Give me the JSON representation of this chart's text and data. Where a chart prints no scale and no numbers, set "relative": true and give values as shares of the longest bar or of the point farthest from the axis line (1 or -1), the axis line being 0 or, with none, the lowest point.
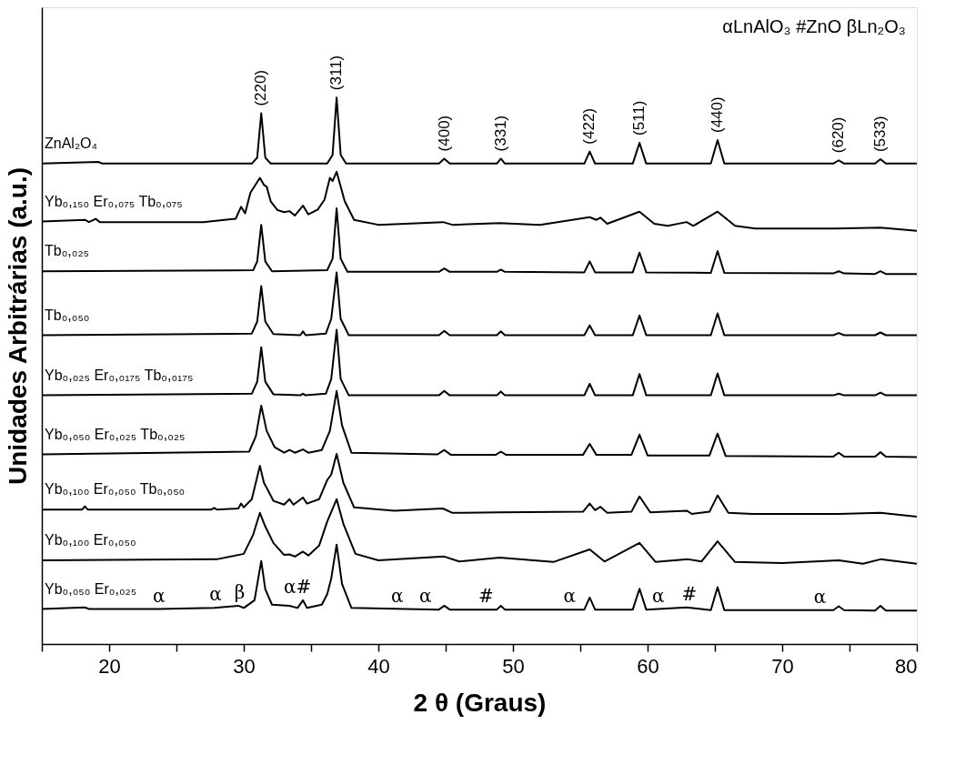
{
  "chart_data": {
    "type": "line",
    "relative": true,
    "xlabel": "2 θ (Graus)",
    "ylabel": "Unidades Arbitrárias (a.u.)",
    "xlim": [
      15,
      80
    ],
    "xticks": [
      {
        "value": 15,
        "label": null
      },
      20,
      {
        "value": 25,
        "label": null
      },
      30,
      {
        "value": 35,
        "label": null
      },
      40,
      {
        "value": 45,
        "label": null
      },
      50,
      {
        "value": 55,
        "label": null
      },
      60,
      {
        "value": 65,
        "label": null
      },
      70,
      {
        "value": 75,
        "label": null
      },
      80
    ],
    "tick_labels": "x",
    "grid": false,
    "line_style": "solid",
    "series": [
      {
        "name": "ZnAl₂O₄",
        "color": "#000000",
        "x": [
          15,
          19.2,
          19.5,
          30.6,
          31.0,
          31.3,
          31.6,
          32.0,
          36.2,
          36.6,
          36.9,
          37.2,
          37.6,
          44.5,
          44.9,
          45.3,
          48.8,
          49.1,
          49.4,
          55.3,
          55.7,
          56.1,
          58.9,
          59.4,
          59.9,
          64.7,
          65.2,
          65.7,
          73.8,
          74.2,
          74.6,
          76.9,
          77.3,
          77.7,
          80
        ],
        "values": [
          0.879,
          0.882,
          0.879,
          0.879,
          0.89,
          0.971,
          0.89,
          0.879,
          0.879,
          0.895,
          1.0,
          0.895,
          0.879,
          0.879,
          0.888,
          0.879,
          0.879,
          0.888,
          0.879,
          0.879,
          0.901,
          0.879,
          0.879,
          0.917,
          0.879,
          0.879,
          0.922,
          0.879,
          0.879,
          0.885,
          0.879,
          0.879,
          0.887,
          0.879,
          0.879
        ]
      },
      {
        "name": "Yb₀,₁₅₀ Er₀,₀₇₅ Tb₀,₀₇₅",
        "color": "#000000",
        "x": [
          15,
          18.2,
          18.5,
          19.0,
          19.3,
          27,
          29.4,
          29.8,
          30.1,
          30.5,
          31.2,
          31.5,
          31.7,
          32.0,
          32.5,
          33.0,
          33.4,
          33.8,
          34.4,
          34.8,
          35.5,
          36.0,
          36.4,
          36.6,
          36.9,
          37.5,
          38.2,
          40,
          44.8,
          45.5,
          49,
          52,
          55.7,
          56.2,
          56.5,
          57,
          59.4,
          60.5,
          61.5,
          62.9,
          63.4,
          65.2,
          66.5,
          68,
          74,
          77.3,
          80
        ],
        "values": [
          0.773,
          0.776,
          0.772,
          0.778,
          0.772,
          0.772,
          0.778,
          0.8,
          0.788,
          0.826,
          0.853,
          0.84,
          0.837,
          0.81,
          0.794,
          0.79,
          0.792,
          0.784,
          0.802,
          0.786,
          0.795,
          0.813,
          0.853,
          0.847,
          0.864,
          0.81,
          0.776,
          0.767,
          0.772,
          0.767,
          0.77,
          0.767,
          0.781,
          0.776,
          0.78,
          0.769,
          0.791,
          0.769,
          0.765,
          0.772,
          0.765,
          0.791,
          0.765,
          0.76,
          0.76,
          0.762,
          0.756
        ]
      },
      {
        "name": "Tb₀,₀₂₅",
        "color": "#000000",
        "x": [
          15,
          30.7,
          31.0,
          31.3,
          31.6,
          32.1,
          36.2,
          36.6,
          36.9,
          37.2,
          37.7,
          44.5,
          44.9,
          45.3,
          48.8,
          49.1,
          49.4,
          55.3,
          55.7,
          56.1,
          58.9,
          59.4,
          59.9,
          64.7,
          65.2,
          65.7,
          73.8,
          74.2,
          74.6,
          76.9,
          77.3,
          77.7,
          80
        ],
        "values": [
          0.682,
          0.684,
          0.7,
          0.767,
          0.7,
          0.682,
          0.684,
          0.705,
          0.797,
          0.705,
          0.681,
          0.681,
          0.687,
          0.681,
          0.681,
          0.685,
          0.681,
          0.68,
          0.7,
          0.68,
          0.68,
          0.716,
          0.68,
          0.679,
          0.719,
          0.679,
          0.678,
          0.682,
          0.678,
          0.677,
          0.682,
          0.677,
          0.677
        ]
      },
      {
        "name": "Tb₀,₀₅₀",
        "color": "#000000",
        "x": [
          15,
          30.6,
          31.0,
          31.3,
          31.6,
          32.2,
          34.2,
          34.4,
          34.6,
          36.1,
          36.5,
          36.9,
          37.2,
          37.8,
          44.5,
          44.9,
          45.3,
          48.8,
          49.1,
          49.4,
          55.3,
          55.7,
          56.1,
          58.9,
          59.4,
          59.9,
          64.7,
          65.2,
          65.7,
          73.8,
          74.2,
          74.6,
          76.9,
          77.3,
          77.7,
          80
        ],
        "values": [
          0.565,
          0.568,
          0.59,
          0.655,
          0.59,
          0.567,
          0.565,
          0.572,
          0.565,
          0.568,
          0.595,
          0.68,
          0.595,
          0.565,
          0.565,
          0.573,
          0.565,
          0.565,
          0.572,
          0.565,
          0.565,
          0.583,
          0.565,
          0.565,
          0.601,
          0.565,
          0.565,
          0.605,
          0.565,
          0.565,
          0.569,
          0.565,
          0.565,
          0.57,
          0.565,
          0.565
        ]
      },
      {
        "name": "Yb₀,₀₂₅ Er₀,₀₁₇₅ Tb₀,₀₁₇₅",
        "color": "#000000",
        "x": [
          15,
          30.6,
          31.0,
          31.3,
          31.6,
          32.2,
          34.2,
          34.4,
          34.6,
          36.1,
          36.5,
          36.9,
          37.2,
          37.8,
          44.5,
          44.9,
          45.3,
          48.8,
          49.1,
          49.4,
          55.3,
          55.7,
          56.1,
          58.9,
          59.4,
          59.9,
          64.7,
          65.2,
          65.7,
          73.8,
          74.2,
          74.6,
          76.9,
          77.3,
          77.7,
          80
        ],
        "values": [
          0.455,
          0.458,
          0.48,
          0.543,
          0.48,
          0.457,
          0.455,
          0.458,
          0.455,
          0.458,
          0.485,
          0.575,
          0.485,
          0.455,
          0.455,
          0.463,
          0.455,
          0.455,
          0.462,
          0.455,
          0.455,
          0.476,
          0.455,
          0.455,
          0.494,
          0.455,
          0.455,
          0.495,
          0.455,
          0.455,
          0.458,
          0.455,
          0.455,
          0.46,
          0.455,
          0.455
        ]
      },
      {
        "name": "Yb₀,₀₅₀ Er₀,₀₂₅ Tb₀,₀₂₅",
        "color": "#000000",
        "x": [
          15,
          30.4,
          30.9,
          31.3,
          31.7,
          32.3,
          33.0,
          33.4,
          33.8,
          34.4,
          34.8,
          35.8,
          36.4,
          36.9,
          37.3,
          38.0,
          44.4,
          44.9,
          45.4,
          48.7,
          49.1,
          49.5,
          55.2,
          55.7,
          56.2,
          58.8,
          59.4,
          60.0,
          64.6,
          65.2,
          65.8,
          73.8,
          74.2,
          74.6,
          76.9,
          77.3,
          77.7,
          80
        ],
        "values": [
          0.347,
          0.352,
          0.38,
          0.436,
          0.39,
          0.36,
          0.35,
          0.355,
          0.35,
          0.356,
          0.35,
          0.355,
          0.39,
          0.463,
          0.4,
          0.35,
          0.347,
          0.355,
          0.346,
          0.346,
          0.352,
          0.346,
          0.346,
          0.366,
          0.346,
          0.346,
          0.383,
          0.345,
          0.345,
          0.385,
          0.344,
          0.343,
          0.35,
          0.343,
          0.343,
          0.351,
          0.343,
          0.342
        ]
      },
      {
        "name": "Yb₀,₁₀₀ Er₀,₀₅₀ Tb₀,₀₅₀",
        "color": "#000000",
        "x": [
          15,
          18.0,
          18.2,
          18.4,
          27.6,
          27.8,
          28.0,
          29.6,
          29.8,
          30.0,
          30.6,
          31.2,
          31.5,
          31.7,
          32.2,
          33.0,
          33.4,
          33.7,
          34.4,
          34.7,
          35.6,
          36.2,
          36.5,
          36.9,
          37.4,
          38.2,
          41.2,
          44.8,
          45.5,
          49,
          55.2,
          55.7,
          56.1,
          56.5,
          57,
          58.8,
          59.4,
          60.2,
          62.9,
          63.3,
          64.6,
          65.2,
          66,
          67.8,
          74.2,
          77.3,
          80
        ],
        "values": [
          0.246,
          0.246,
          0.252,
          0.246,
          0.246,
          0.249,
          0.246,
          0.248,
          0.257,
          0.25,
          0.265,
          0.326,
          0.295,
          0.286,
          0.262,
          0.255,
          0.265,
          0.255,
          0.268,
          0.257,
          0.265,
          0.3,
          0.31,
          0.348,
          0.295,
          0.25,
          0.244,
          0.248,
          0.24,
          0.241,
          0.242,
          0.257,
          0.245,
          0.251,
          0.24,
          0.242,
          0.27,
          0.241,
          0.244,
          0.238,
          0.242,
          0.272,
          0.24,
          0.238,
          0.238,
          0.24,
          0.233
        ]
      },
      {
        "name": "Yb₀,₁₀₀ Er₀,₀₅₀",
        "color": "#000000",
        "x": [
          15,
          28,
          30.0,
          30.7,
          31.2,
          31.6,
          32.2,
          33.0,
          33.4,
          33.8,
          34.4,
          34.8,
          35.6,
          36.2,
          36.9,
          37.4,
          38.3,
          40,
          44.9,
          46,
          49,
          53,
          55.7,
          56.8,
          59.4,
          60.6,
          63.0,
          64.0,
          65.2,
          66.5,
          70,
          74.2,
          76,
          77.3,
          80
        ],
        "values": [
          0.153,
          0.155,
          0.165,
          0.2,
          0.24,
          0.215,
          0.185,
          0.163,
          0.164,
          0.16,
          0.169,
          0.162,
          0.18,
          0.224,
          0.265,
          0.22,
          0.165,
          0.153,
          0.16,
          0.151,
          0.158,
          0.15,
          0.173,
          0.151,
          0.185,
          0.15,
          0.155,
          0.151,
          0.188,
          0.15,
          0.148,
          0.153,
          0.147,
          0.155,
          0.147
        ]
      },
      {
        "name": "Yb₀,₀₅₀ Er₀,₀₂₅",
        "color": "#000000",
        "x": [
          15,
          18.2,
          18.5,
          23.7,
          27.8,
          29.6,
          30.0,
          30.8,
          31.3,
          31.6,
          32.1,
          33.4,
          34.0,
          34.4,
          34.7,
          35.8,
          36.2,
          36.5,
          36.9,
          37.3,
          38.0,
          44.5,
          44.9,
          45.3,
          48.8,
          49.1,
          49.4,
          55.3,
          55.7,
          56.1,
          58.9,
          59.4,
          59.9,
          62.9,
          64.7,
          65.2,
          65.7,
          73.8,
          74.2,
          74.6,
          76.9,
          77.3,
          77.7,
          80
        ],
        "values": [
          0.064,
          0.067,
          0.064,
          0.064,
          0.066,
          0.07,
          0.066,
          0.08,
          0.152,
          0.1,
          0.072,
          0.07,
          0.066,
          0.08,
          0.066,
          0.072,
          0.091,
          0.12,
          0.182,
          0.11,
          0.066,
          0.063,
          0.07,
          0.063,
          0.063,
          0.07,
          0.063,
          0.063,
          0.085,
          0.063,
          0.063,
          0.101,
          0.063,
          0.067,
          0.062,
          0.104,
          0.062,
          0.062,
          0.069,
          0.062,
          0.061,
          0.07,
          0.061,
          0.061
        ]
      }
    ],
    "annotations": [
      "αLnAlO₃ #ZnO βLn₂O₃",
      {
        "text": "(220)",
        "x": 31.3,
        "y": 0.971
      },
      {
        "text": "(311)",
        "x": 36.9,
        "y": 1.0
      },
      {
        "text": "(400)",
        "x": 44.9,
        "y": 0.888
      },
      {
        "text": "(331)",
        "x": 49.1,
        "y": 0.888
      },
      {
        "text": "(422)",
        "x": 55.7,
        "y": 0.901
      },
      {
        "text": "(511)",
        "x": 59.4,
        "y": 0.917
      },
      {
        "text": "(440)",
        "x": 65.2,
        "y": 0.922
      },
      {
        "text": "(620)",
        "x": 74.2,
        "y": 0.885
      },
      {
        "text": "(533)",
        "x": 77.3,
        "y": 0.887
      },
      {
        "text": "α",
        "x": 23.7,
        "y": 0.064
      },
      {
        "text": "α",
        "x": 27.9,
        "y": 0.066
      },
      {
        "text": "β",
        "x": 29.7,
        "y": 0.07
      },
      {
        "text": "α#",
        "x": 34.0,
        "y": 0.08
      },
      {
        "text": "α",
        "x": 41.4,
        "y": 0.063
      },
      {
        "text": "α",
        "x": 43.5,
        "y": 0.063
      },
      {
        "text": "#",
        "x": 48.0,
        "y": 0.063
      },
      {
        "text": "α",
        "x": 54.2,
        "y": 0.063
      },
      {
        "text": "α",
        "x": 60.8,
        "y": 0.063
      },
      {
        "text": "#",
        "x": 63.1,
        "y": 0.067
      },
      {
        "text": "α",
        "x": 72.8,
        "y": 0.062
      }
    ]
  }
}
